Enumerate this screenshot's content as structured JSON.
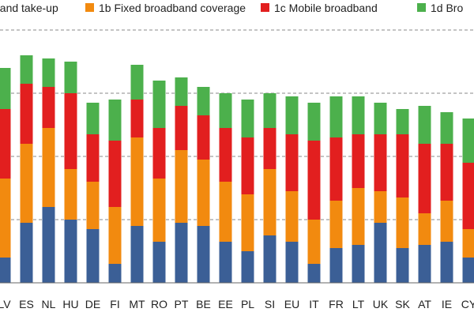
{
  "chart_data": {
    "type": "bar",
    "stacked": true,
    "grid": "horizontal dashed",
    "legend_position": "top",
    "ylim": [
      0,
      1.0
    ],
    "categories": [
      "LV",
      "ES",
      "NL",
      "HU",
      "DE",
      "FI",
      "MT",
      "RO",
      "PT",
      "BE",
      "EE",
      "PL",
      "SI",
      "EU",
      "IT",
      "FR",
      "LT",
      "UK",
      "SK",
      "AT",
      "IE",
      "CY"
    ],
    "series": [
      {
        "name": "band take-up",
        "color": "#3b5f96",
        "values": [
          0.08,
          0.19,
          0.24,
          0.2,
          0.17,
          0.06,
          0.18,
          0.13,
          0.19,
          0.18,
          0.13,
          0.1,
          0.15,
          0.13,
          0.06,
          0.11,
          0.12,
          0.19,
          0.11,
          0.12,
          0.13,
          0.08
        ]
      },
      {
        "name": "1b Fixed broadband coverage",
        "color": "#f28a0f",
        "values": [
          0.25,
          0.25,
          0.25,
          0.16,
          0.15,
          0.18,
          0.28,
          0.2,
          0.23,
          0.21,
          0.19,
          0.18,
          0.21,
          0.16,
          0.14,
          0.15,
          0.18,
          0.1,
          0.16,
          0.1,
          0.13,
          0.09
        ]
      },
      {
        "name": "1c Mobile broadband",
        "color": "#e21f1f",
        "values": [
          0.22,
          0.19,
          0.13,
          0.24,
          0.15,
          0.21,
          0.12,
          0.16,
          0.14,
          0.14,
          0.17,
          0.18,
          0.13,
          0.18,
          0.25,
          0.2,
          0.17,
          0.18,
          0.2,
          0.22,
          0.18,
          0.21
        ]
      },
      {
        "name": "1d Bro",
        "color": "#4cb04c",
        "values": [
          0.13,
          0.09,
          0.09,
          0.1,
          0.1,
          0.13,
          0.11,
          0.15,
          0.09,
          0.09,
          0.11,
          0.12,
          0.11,
          0.12,
          0.12,
          0.13,
          0.12,
          0.1,
          0.08,
          0.12,
          0.1,
          0.14
        ]
      }
    ]
  }
}
